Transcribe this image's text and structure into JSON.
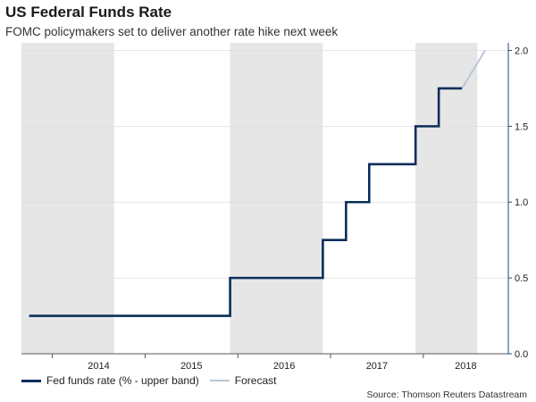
{
  "title": "US Federal Funds Rate",
  "subtitle": "FOMC policymakers set to deliver another rate hike next week",
  "source": "Source: Thomson Reuters Datastream",
  "colors": {
    "actual": "#0b2e5c",
    "forecast": "#b8c7d9",
    "shade": "#e6e6e6",
    "grid": "#dddddd",
    "axis": "#1f4e79"
  },
  "chart_data": {
    "type": "line",
    "x_axis": {
      "ticks": [
        "2014",
        "2015",
        "2016",
        "2017",
        "2018"
      ],
      "range": [
        "2013-09",
        "2018-12"
      ]
    },
    "y_axis": {
      "position": "right",
      "ticks": [
        "0.0",
        "0.5",
        "1.0",
        "1.5",
        "2.0"
      ],
      "ylim": [
        0,
        2.05
      ]
    },
    "grid": {
      "horizontal": true
    },
    "shaded_periods": [
      {
        "start": "2013-09",
        "end": "2014-09"
      },
      {
        "start": "2015-12",
        "end": "2016-12"
      },
      {
        "start": "2017-12",
        "end": "2018-08"
      }
    ],
    "series": [
      {
        "name": "Fed funds rate (% - upper band)",
        "step": true,
        "x": [
          "2013-10",
          "2015-12",
          "2016-12",
          "2017-03",
          "2017-06",
          "2017-12",
          "2018-03",
          "2018-06"
        ],
        "y": [
          0.25,
          0.5,
          0.75,
          1.0,
          1.25,
          1.5,
          1.75,
          1.75
        ]
      },
      {
        "name": "Forecast",
        "x": [
          "2018-06",
          "2018-09"
        ],
        "y": [
          1.75,
          2.0
        ]
      }
    ],
    "legend": {
      "placement": "bottom-left"
    }
  }
}
